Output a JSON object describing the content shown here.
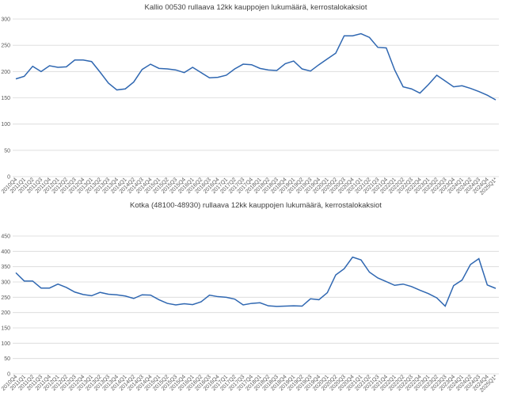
{
  "chart_data": [
    {
      "type": "line",
      "title": "Kallio 00530 rullaava 12kk kauppojen lukumäärä, kerrostalokaksiot",
      "categories": [
        "2010Q4",
        "2011Q1",
        "2011Q2",
        "2011Q3",
        "2011Q4",
        "2012Q1",
        "2012Q2",
        "2012Q3",
        "2012Q4",
        "2013Q1",
        "2013Q2",
        "2013Q3",
        "2013Q4",
        "2014Q1",
        "2014Q2",
        "2014Q3",
        "2014Q4",
        "2015Q1",
        "2015Q2",
        "2015Q3",
        "2015Q4",
        "2016Q1",
        "2016Q2",
        "2016Q3",
        "2016Q4",
        "2017Q1",
        "2017Q2",
        "2017Q3",
        "2017Q4",
        "2018Q1",
        "2018Q2",
        "2018Q3",
        "2018Q4",
        "2019Q1",
        "2019Q2",
        "2019Q3",
        "2019Q4",
        "2020Q1",
        "2020Q2",
        "2020Q3",
        "2020Q4",
        "2021Q1",
        "2021Q2",
        "2021Q3",
        "2021Q4",
        "2022Q1",
        "2022Q2",
        "2022Q3",
        "2022Q4",
        "2023Q1",
        "2023Q2",
        "2023Q3",
        "2023Q4",
        "2024Q1",
        "2024Q2",
        "2024Q3",
        "2024Q4",
        "2025Q1*"
      ],
      "series": [
        {
          "name": "Kallio",
          "color": "#2f67b1",
          "values": [
            186,
            191,
            210,
            200,
            211,
            208,
            209,
            222,
            222,
            219,
            199,
            178,
            165,
            167,
            180,
            204,
            214,
            206,
            205,
            203,
            198,
            208,
            198,
            188,
            189,
            193,
            205,
            214,
            213,
            206,
            203,
            202,
            215,
            220,
            205,
            201,
            213,
            224,
            235,
            268,
            268,
            272,
            265,
            246,
            245,
            203,
            171,
            167,
            159,
            175,
            193,
            182,
            171,
            173,
            168,
            162,
            155,
            146
          ]
        }
      ],
      "ylim": [
        0,
        300
      ],
      "yticks": [
        0,
        50,
        100,
        150,
        200,
        250,
        300
      ],
      "grid": true
    },
    {
      "type": "line",
      "title": "Kotka (48100-48930) rullaava 12kk kauppojen lukumäärä, kerrostalokaksiot",
      "categories": [
        "2010Q4",
        "2011Q1",
        "2011Q2",
        "2011Q3",
        "2011Q4",
        "2012Q1",
        "2012Q2",
        "2012Q3",
        "2012Q4",
        "2013Q1",
        "2013Q2",
        "2013Q3",
        "2013Q4",
        "2014Q1",
        "2014Q2",
        "2014Q3",
        "2014Q4",
        "2015Q1",
        "2015Q2",
        "2015Q3",
        "2015Q4",
        "2016Q1",
        "2016Q2",
        "2016Q3",
        "2016Q4",
        "2017Q1",
        "2017Q2",
        "2017Q3",
        "2017Q4",
        "2018Q1",
        "2018Q2",
        "2018Q3",
        "2018Q4",
        "2019Q1",
        "2019Q2",
        "2019Q3",
        "2019Q4",
        "2020Q1",
        "2020Q2",
        "2020Q3",
        "2020Q4",
        "2021Q1",
        "2021Q2",
        "2021Q3",
        "2021Q4",
        "2022Q1",
        "2022Q2",
        "2022Q3",
        "2022Q4",
        "2023Q1",
        "2023Q2",
        "2023Q3",
        "2023Q4",
        "2024Q1",
        "2024Q2",
        "2024Q3",
        "2024Q4",
        "2025Q1*"
      ],
      "series": [
        {
          "name": "Kotka",
          "color": "#2f67b1",
          "values": [
            330,
            303,
            303,
            280,
            280,
            293,
            282,
            267,
            259,
            255,
            266,
            260,
            258,
            254,
            246,
            258,
            257,
            242,
            230,
            225,
            229,
            226,
            235,
            257,
            252,
            250,
            244,
            225,
            230,
            232,
            222,
            220,
            221,
            222,
            221,
            245,
            242,
            265,
            323,
            343,
            381,
            372,
            332,
            313,
            301,
            289,
            293,
            285,
            273,
            262,
            248,
            221,
            288,
            306,
            357,
            376,
            290,
            279
          ]
        }
      ],
      "ylim": [
        0,
        450
      ],
      "yticks": [
        0,
        50,
        100,
        150,
        200,
        250,
        300,
        350,
        400,
        450
      ],
      "grid": true
    }
  ]
}
